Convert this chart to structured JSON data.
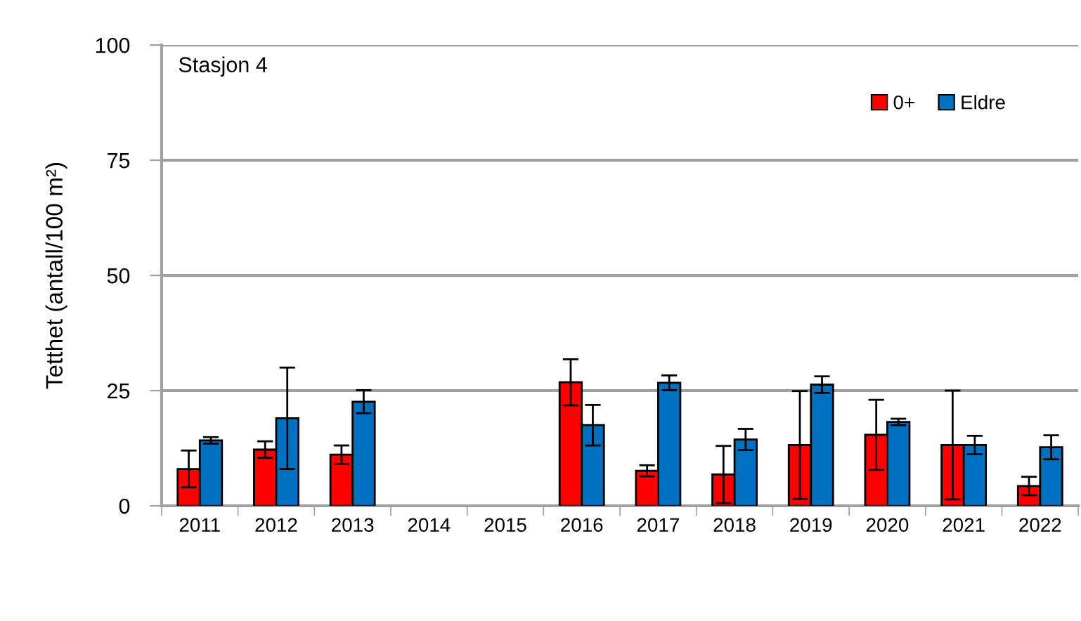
{
  "chart_data": {
    "type": "bar",
    "title": "Stasjon 4",
    "ylabel": "Tetthet (antall/100 m²)",
    "categories": [
      "2011",
      "2012",
      "2013",
      "2014",
      "2015",
      "2016",
      "2017",
      "2018",
      "2019",
      "2020",
      "2021",
      "2022"
    ],
    "series": [
      {
        "name": "0+",
        "color": "#ff0000",
        "values": [
          8,
          12.2,
          11.1,
          null,
          null,
          26.8,
          7.6,
          6.8,
          13.2,
          15.4,
          13.2,
          4.3
        ],
        "errors": [
          4,
          1.8,
          2,
          null,
          null,
          5,
          1.2,
          6.2,
          11.7,
          7.6,
          11.8,
          2
        ]
      },
      {
        "name": "Eldre",
        "color": "#0070c0",
        "values": [
          14.2,
          19,
          22.6,
          null,
          null,
          17.5,
          26.7,
          14.4,
          26.3,
          18.2,
          13.2,
          12.7
        ],
        "errors": [
          0.7,
          11,
          2.5,
          null,
          null,
          4.4,
          1.6,
          2.3,
          1.8,
          0.7,
          2,
          2.6
        ]
      }
    ],
    "ylim": [
      0,
      100
    ],
    "yticks": [
      0,
      25,
      50,
      75,
      100
    ],
    "grid": "y",
    "legend": "top right"
  }
}
